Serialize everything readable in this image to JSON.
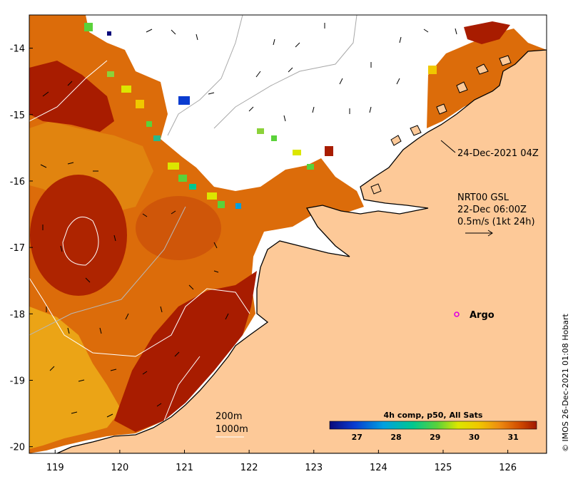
{
  "map": {
    "type": "sea-surface-temperature-map",
    "x_axis_ticks": [
      "119",
      "120",
      "121",
      "122",
      "123",
      "124",
      "125",
      "126"
    ],
    "y_axis_ticks": [
      "-14",
      "-15",
      "-16",
      "-17",
      "-18",
      "-19",
      "-20"
    ],
    "lon_range": [
      118.6,
      126.6
    ],
    "lat_range": [
      -20.1,
      -13.5
    ]
  },
  "annotations": {
    "timestamp_label": "24-Dec-2021 04Z",
    "current_source": "NRT00 GSL",
    "current_time": "22-Dec 06:00Z",
    "current_scale": "0.5m/s (1kt 24h)",
    "argo_label": "Argo",
    "depth_200": "200m",
    "depth_1000": "1000m"
  },
  "colorbar": {
    "title": "4h comp, p50, All Sats",
    "ticks": [
      "27",
      "28",
      "29",
      "30",
      "31"
    ],
    "range": [
      26.3,
      31.6
    ]
  },
  "credit": "© IMOS 26-Dec-2021 01:08 Hobart",
  "colors": {
    "land": "#FDC998",
    "warm": "#A81C00",
    "mid": "#D96A08",
    "cool": "#EBA416",
    "argo": "#E000E0"
  }
}
